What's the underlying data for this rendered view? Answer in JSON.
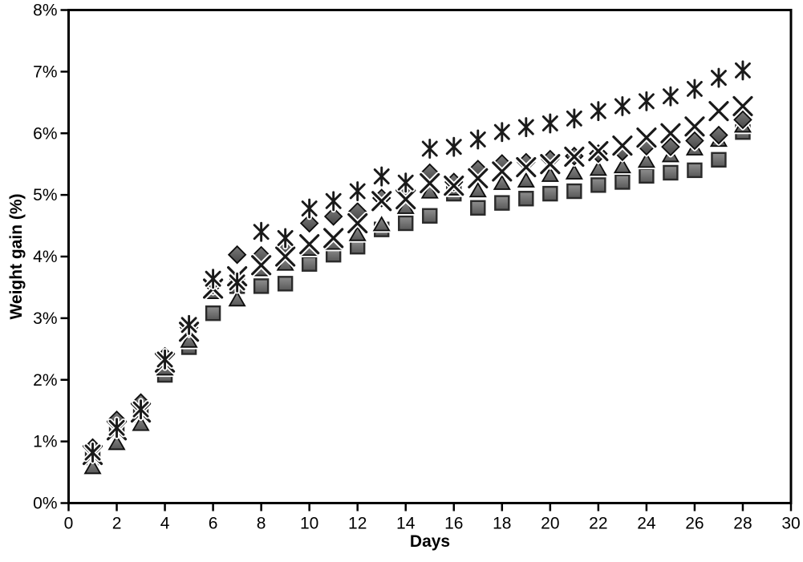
{
  "chart_data": {
    "type": "scatter",
    "title": "",
    "xlabel": "Days",
    "ylabel": "Weight gain (%)",
    "xlim": [
      0,
      30
    ],
    "ylim": [
      0,
      8
    ],
    "y_unit": "%",
    "grid": false,
    "legend": "none",
    "frame": true,
    "x_ticks": [
      0,
      2,
      4,
      6,
      8,
      10,
      12,
      14,
      16,
      18,
      20,
      22,
      24,
      26,
      28,
      30
    ],
    "y_ticks": [
      0,
      1,
      2,
      3,
      4,
      5,
      6,
      7,
      8
    ],
    "y_tick_labels": [
      "0%",
      "1%",
      "2%",
      "3%",
      "4%",
      "5%",
      "6%",
      "7%",
      "8%"
    ],
    "x": [
      1,
      2,
      3,
      4,
      5,
      6,
      7,
      8,
      9,
      10,
      11,
      12,
      13,
      14,
      15,
      16,
      17,
      18,
      19,
      20,
      21,
      22,
      23,
      24,
      25,
      26,
      27,
      28
    ],
    "series": [
      {
        "name": "asterisk-series",
        "marker": "asterisk",
        "color": "#1a1a1a",
        "values": [
          0.82,
          1.22,
          1.52,
          2.33,
          2.89,
          3.64,
          3.58,
          4.4,
          4.3,
          4.78,
          4.9,
          5.06,
          5.3,
          5.2,
          5.75,
          5.78,
          5.9,
          6.02,
          6.1,
          6.16,
          6.24,
          6.36,
          6.44,
          6.52,
          6.6,
          6.72,
          6.9,
          7.02
        ]
      },
      {
        "name": "x-series",
        "marker": "x",
        "color": "#1a1a1a",
        "values": [
          0.78,
          1.18,
          1.47,
          2.28,
          2.78,
          3.48,
          3.68,
          3.86,
          4.0,
          4.2,
          4.3,
          4.54,
          4.9,
          4.93,
          5.19,
          5.15,
          5.27,
          5.38,
          5.45,
          5.5,
          5.62,
          5.71,
          5.8,
          5.93,
          6.0,
          6.11,
          6.36,
          6.44
        ]
      },
      {
        "name": "diamond-series",
        "marker": "diamond",
        "color": "#565656",
        "values": [
          0.9,
          1.35,
          1.63,
          2.38,
          2.85,
          3.54,
          4.03,
          4.02,
          4.14,
          4.54,
          4.65,
          4.73,
          4.95,
          5.06,
          5.36,
          5.21,
          5.42,
          5.51,
          5.53,
          5.58,
          5.63,
          5.67,
          5.7,
          5.79,
          5.78,
          5.88,
          5.97,
          6.22
        ]
      },
      {
        "name": "triangle-series",
        "marker": "triangle",
        "color": "#6e6e6e",
        "values": [
          0.58,
          0.97,
          1.28,
          2.18,
          2.63,
          3.42,
          3.3,
          3.79,
          3.88,
          4.12,
          4.22,
          4.36,
          4.52,
          4.8,
          5.05,
          5.1,
          5.07,
          5.19,
          5.23,
          5.32,
          5.36,
          5.42,
          5.46,
          5.55,
          5.64,
          5.75,
          5.89,
          6.12
        ]
      },
      {
        "name": "square-series",
        "marker": "square",
        "color": "#6e6e6e",
        "values": [
          0.74,
          1.17,
          1.43,
          2.08,
          2.53,
          3.08,
          3.52,
          3.52,
          3.56,
          3.88,
          4.03,
          4.16,
          4.44,
          4.54,
          4.66,
          5.02,
          4.79,
          4.87,
          4.94,
          5.02,
          5.06,
          5.16,
          5.21,
          5.31,
          5.36,
          5.4,
          5.57,
          6.02
        ]
      }
    ],
    "axis_color": "#000000",
    "background_color": "#ffffff",
    "tick_label_font_size": 21
  }
}
